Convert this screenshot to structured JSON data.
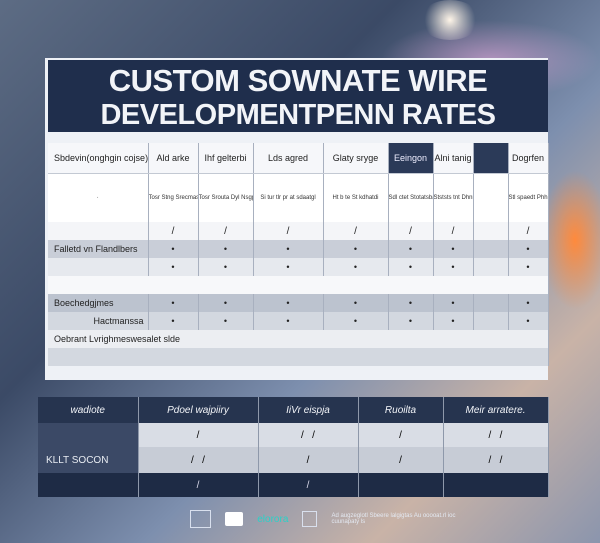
{
  "title": {
    "line1": "CUSTOM SOWNATE WIRE",
    "line2": "DEVELOPMENTPENN RATES"
  },
  "table1": {
    "headers": [
      "Sbdevin(onghgin cojse)",
      "Ald arke",
      "Ihf gelterbi",
      "Lds agred",
      "Glaty sryge",
      "Eeingon",
      "Alni tanig",
      "Dogrfen"
    ],
    "description_row": [
      "",
      "",
      "Tosr Stng Srecmastuk",
      "Tosr Srouta Dyl Nsgphtgurn",
      "Si tur tlr pr at sdaatgl",
      "Ht b te St kdhatdi",
      "Sdl ctet Stotatsbas",
      "",
      "Stststs tnt Dhnr Sbstsnea",
      "Stl spaedt Phh Stamnets"
    ],
    "rows": [
      {
        "label": "",
        "marks": [
          "·",
          "·",
          "/",
          "/",
          "/",
          "/",
          "/",
          "/",
          "/",
          "/"
        ]
      },
      {
        "label": "Falletd vn Flandlbers",
        "marks": [
          "•",
          "•",
          "•",
          "•",
          "•",
          "•",
          "•"
        ]
      },
      {
        "label": "",
        "marks": [
          "•",
          "•",
          "•",
          "•",
          "•",
          "•",
          "•"
        ]
      },
      {
        "label": "",
        "marks": [
          "",
          "",
          "",
          "",
          "",
          "",
          ""
        ]
      },
      {
        "label": "Boechedgjmes",
        "marks": [
          "•",
          "•",
          "•",
          "•",
          "•",
          "•",
          "•"
        ]
      },
      {
        "label": "Hactmanssa",
        "marks": [
          "•",
          "•",
          "•",
          "•",
          "•",
          "•",
          "•"
        ]
      },
      {
        "label": "Oebrant Lvrighmeswesalet slde",
        "marks": []
      },
      {
        "label": "",
        "marks": []
      }
    ]
  },
  "table2": {
    "headers": [
      "wadiote",
      "Pdoel wajpiiry",
      "IiVr eispja",
      "Ruoilta",
      "Meir arratere."
    ],
    "row_label": "KLLT SOCON",
    "marks_row1": [
      "/",
      "/",
      "/",
      "/",
      "/",
      "/"
    ],
    "marks_row2": [
      "/",
      "/",
      "/",
      "/",
      "/",
      "/",
      "/",
      "/"
    ]
  },
  "footer": {
    "brand": "elorora",
    "note": "Ad augzeglotl Sbeere lalgigtas Au ooooat.rl ioc cuunapaty ls"
  },
  "colors": {
    "title_bg": "#1f2e4c",
    "accent_dark": "#26344f"
  }
}
